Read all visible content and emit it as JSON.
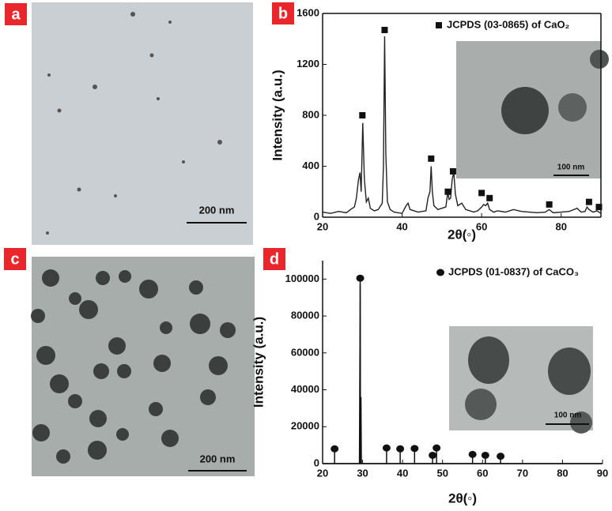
{
  "panels": [
    {
      "label": "a",
      "scale_bar": "200 nm"
    },
    {
      "label": "b"
    },
    {
      "label": "c",
      "scale_bar": "200 nm"
    },
    {
      "label": "d"
    }
  ],
  "chart_data": [
    {
      "type": "line",
      "xlabel": "2θ(◦)",
      "ylabel": "Intensity (a.u.)",
      "inset_scale_bar": "100 nm",
      "legend": "upper right",
      "xlim": [
        20,
        90
      ],
      "xticks": [
        20,
        40,
        60,
        80
      ],
      "ylim": [
        0,
        1600
      ],
      "yticks": [
        0,
        400,
        800,
        1200,
        1600
      ],
      "series": [
        {
          "color": "#222222",
          "x": [
            20,
            22,
            24,
            26,
            27,
            28,
            28.5,
            29,
            29.4,
            29.7,
            30.1,
            30.5,
            31,
            31.5,
            32,
            33,
            34,
            35,
            35.3,
            35.6,
            35.9,
            36.3,
            37,
            38,
            40,
            41,
            41.5,
            42,
            44,
            46,
            46.5,
            47,
            47.3,
            47.6,
            48,
            49,
            50,
            51,
            51.5,
            51.8,
            52.2,
            52.6,
            53,
            53.4,
            54,
            55,
            56,
            58,
            59,
            60,
            60.5,
            61,
            61.5,
            62,
            63,
            64,
            66,
            68,
            70,
            72,
            74,
            76,
            77,
            78,
            80,
            82,
            84,
            85,
            86,
            86.5,
            87,
            88,
            89,
            90
          ],
          "values": [
            40,
            30,
            45,
            35,
            60,
            80,
            150,
            290,
            350,
            200,
            740,
            300,
            120,
            150,
            70,
            50,
            60,
            110,
            400,
            1420,
            500,
            120,
            60,
            40,
            30,
            90,
            110,
            60,
            40,
            50,
            150,
            200,
            400,
            200,
            90,
            60,
            70,
            80,
            200,
            140,
            150,
            300,
            350,
            180,
            90,
            110,
            60,
            40,
            50,
            80,
            100,
            90,
            110,
            60,
            40,
            50,
            40,
            60,
            45,
            40,
            35,
            40,
            60,
            35,
            40,
            45,
            70,
            40,
            45,
            80,
            60,
            40,
            50,
            30
          ]
        },
        {
          "name": "JCPDS (03-0865) of CaO₂",
          "color": "#111111",
          "marker": "square",
          "x": [
            30,
            35.6,
            47.3,
            51.5,
            52.8,
            60,
            62,
            77,
            87,
            89.5
          ],
          "values": [
            800,
            1470,
            460,
            200,
            360,
            190,
            150,
            100,
            120,
            80
          ]
        }
      ]
    },
    {
      "type": "line",
      "xlabel": "2θ(◦)",
      "ylabel": "Intensity (a.u.)",
      "inset_scale_bar": "100 nm",
      "legend": "upper right",
      "xlim": [
        20,
        90
      ],
      "xticks": [
        20,
        30,
        40,
        50,
        60,
        70,
        80,
        90
      ],
      "ylim": [
        0,
        110000
      ],
      "yticks": [
        0,
        20000,
        40000,
        60000,
        80000,
        100000
      ],
      "series": [
        {
          "color": "#111111",
          "x": [
            20,
            29.2,
            29.4,
            29.5,
            29.6,
            29.7,
            90
          ],
          "values": [
            0,
            0,
            97000,
            0,
            36000,
            0,
            0
          ]
        },
        {
          "name": "JCPDS (01-0837) of CaCO₃",
          "color": "#111111",
          "marker": "circle",
          "stems": true,
          "x": [
            23,
            29.4,
            36,
            39.4,
            43,
            47.5,
            48.5,
            57.5,
            60.7,
            64.5
          ],
          "values": [
            8000,
            100500,
            8500,
            8000,
            8200,
            4500,
            8500,
            5000,
            4500,
            4000
          ]
        }
      ]
    }
  ]
}
